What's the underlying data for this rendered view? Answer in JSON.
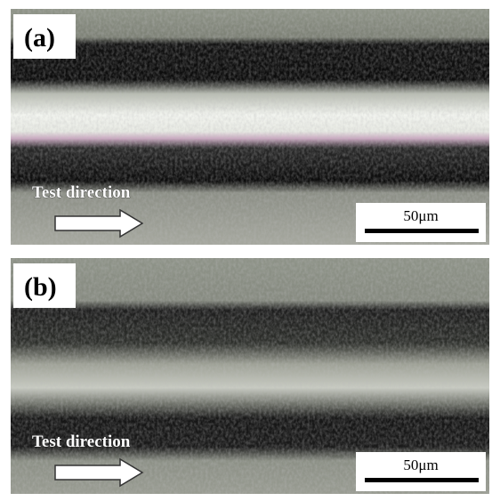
{
  "panels": [
    {
      "label": "(a)",
      "annotation": "Test direction",
      "scale_bar": "50μm"
    },
    {
      "label": "(b)",
      "annotation": "Test direction",
      "scale_bar": "50μm"
    }
  ]
}
